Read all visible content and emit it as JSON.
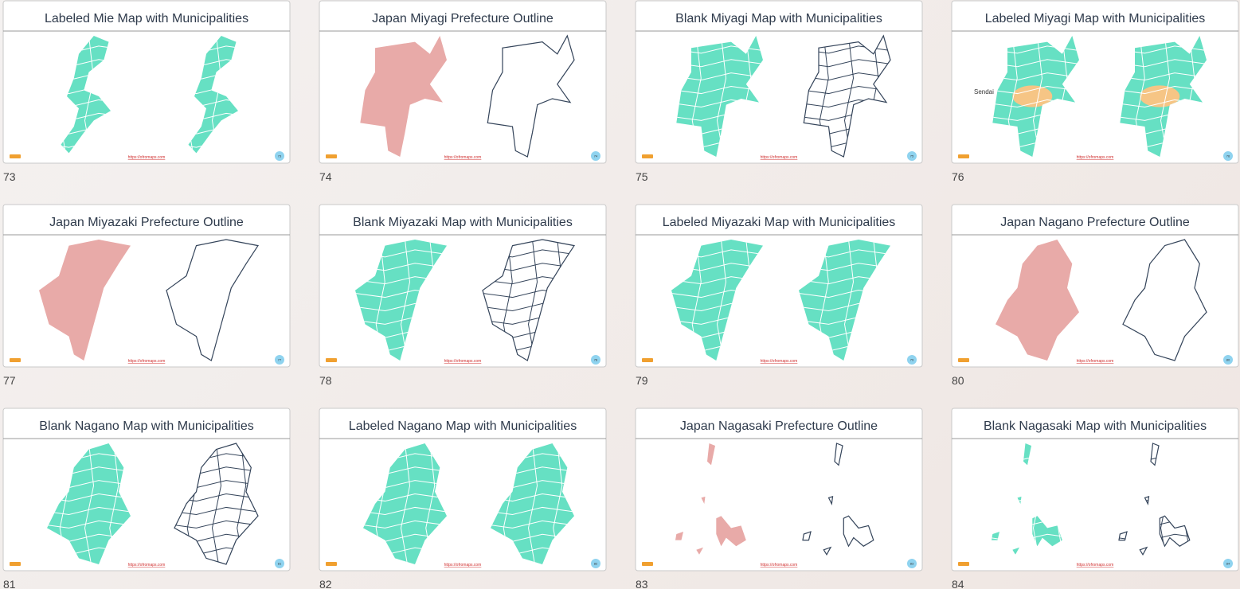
{
  "footer_url": "https://ofromaps.com",
  "slides": [
    {
      "number": 73,
      "title": "Labeled Mie Map with Municipalities"
    },
    {
      "number": 74,
      "title": "Japan Miyagi Prefecture Outline"
    },
    {
      "number": 75,
      "title": "Blank Miyagi Map with Municipalities"
    },
    {
      "number": 76,
      "title": "Labeled Miyagi Map with Municipalities",
      "annotation": "Sendai"
    },
    {
      "number": 77,
      "title": "Japan Miyazaki Prefecture Outline"
    },
    {
      "number": 78,
      "title": "Blank Miyazaki Map with Municipalities"
    },
    {
      "number": 79,
      "title": "Labeled Miyazaki Map with Municipalities"
    },
    {
      "number": 80,
      "title": "Japan Nagano Prefecture Outline"
    },
    {
      "number": 81,
      "title": "Blank Nagano Map with Municipalities"
    },
    {
      "number": 82,
      "title": "Labeled Nagano Map with Municipalities"
    },
    {
      "number": 83,
      "title": "Japan Nagasaki Prefecture Outline"
    },
    {
      "number": 84,
      "title": "Blank Nagasaki Map with Municipalities"
    }
  ]
}
